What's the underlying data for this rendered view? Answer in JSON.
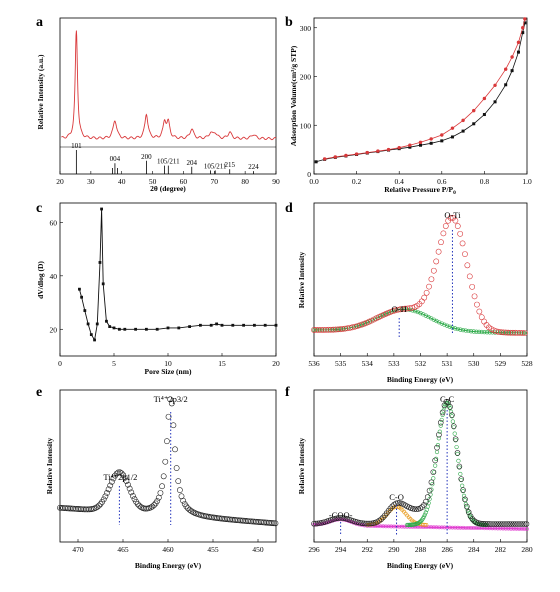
{
  "chart_data": [
    {
      "panel": "a",
      "type": "line",
      "xlabel": "2θ (degree)",
      "ylabel": "Relative Intensity (a.u.)",
      "xlim": [
        20,
        90
      ],
      "xticks": [
        20,
        30,
        40,
        50,
        60,
        70,
        80,
        90
      ],
      "color": "#d9383a",
      "peaks": [
        {
          "x": 25.3,
          "h": 1.0,
          "w": 0.45
        },
        {
          "x": 37.8,
          "h": 0.17,
          "w": 0.7
        },
        {
          "x": 48.0,
          "h": 0.23,
          "w": 0.6
        },
        {
          "x": 53.9,
          "h": 0.15,
          "w": 0.6
        },
        {
          "x": 55.1,
          "h": 0.14,
          "w": 0.6
        },
        {
          "x": 62.7,
          "h": 0.09,
          "w": 0.7
        },
        {
          "x": 68.8,
          "h": 0.05,
          "w": 0.7
        },
        {
          "x": 70.3,
          "h": 0.05,
          "w": 0.7
        },
        {
          "x": 75.0,
          "h": 0.06,
          "w": 0.7
        },
        {
          "x": 82.7,
          "h": 0.04,
          "w": 0.8
        }
      ],
      "reference_lines": [
        {
          "x": 25.3,
          "label": "101",
          "h": 1.0
        },
        {
          "x": 37.0,
          "label": "",
          "h": 0.25
        },
        {
          "x": 37.8,
          "label": "004",
          "h": 0.45
        },
        {
          "x": 38.6,
          "label": "",
          "h": 0.25
        },
        {
          "x": 48.0,
          "label": "200",
          "h": 0.55
        },
        {
          "x": 53.9,
          "label": "",
          "h": 0.35
        },
        {
          "x": 55.1,
          "label": "105/211",
          "h": 0.35
        },
        {
          "x": 62.7,
          "label": "204",
          "h": 0.3
        },
        {
          "x": 68.8,
          "label": "",
          "h": 0.15
        },
        {
          "x": 70.3,
          "label": "105/211",
          "h": 0.15
        },
        {
          "x": 75.0,
          "label": "215",
          "h": 0.2
        },
        {
          "x": 82.7,
          "label": "224",
          "h": 0.12
        }
      ]
    },
    {
      "panel": "b",
      "type": "line",
      "xlabel": "Relative Pressure P/P₀",
      "ylabel": "Adsorption Volume(cm³/g STP)",
      "xlim": [
        0,
        1.0
      ],
      "ylim": [
        0,
        320
      ],
      "xticks": [
        "0.0",
        "0.2",
        "0.4",
        "0.6",
        "0.8",
        "1.0"
      ],
      "yticks": [
        0,
        100,
        200,
        300
      ],
      "series": [
        {
          "color": "#111111",
          "x": [
            0.01,
            0.05,
            0.1,
            0.15,
            0.2,
            0.25,
            0.3,
            0.35,
            0.4,
            0.45,
            0.5,
            0.55,
            0.6,
            0.65,
            0.7,
            0.75,
            0.8,
            0.85,
            0.9,
            0.93,
            0.96,
            0.98,
            0.99
          ],
          "y": [
            25,
            30,
            34,
            37,
            40,
            43,
            46,
            49,
            52,
            55,
            59,
            63,
            68,
            76,
            88,
            103,
            122,
            148,
            183,
            212,
            250,
            290,
            310
          ]
        },
        {
          "color": "#d9383a",
          "x": [
            0.99,
            0.98,
            0.96,
            0.93,
            0.9,
            0.85,
            0.8,
            0.75,
            0.7,
            0.65,
            0.6,
            0.55,
            0.5,
            0.45,
            0.4,
            0.35,
            0.3,
            0.25,
            0.2,
            0.15,
            0.1,
            0.05
          ],
          "y": [
            318,
            300,
            270,
            240,
            215,
            182,
            155,
            130,
            110,
            94,
            80,
            72,
            65,
            59,
            54,
            50,
            47,
            44,
            41,
            38,
            35,
            31
          ]
        }
      ]
    },
    {
      "panel": "c",
      "type": "line",
      "xlabel": "Pore Size (nm)",
      "ylabel": "dV/dlog (D)",
      "xlim": [
        0,
        20
      ],
      "ylim": [
        10,
        65
      ],
      "xticks": [
        0,
        5,
        10,
        15,
        20
      ],
      "yticks": [
        20,
        40,
        60
      ],
      "color": "#111111",
      "x": [
        1.8,
        2.0,
        2.3,
        2.6,
        2.9,
        3.2,
        3.45,
        3.7,
        3.85,
        4.0,
        4.3,
        4.6,
        5.0,
        5.5,
        6,
        7,
        8,
        9,
        10,
        11,
        12,
        13,
        14,
        14.5,
        15,
        16,
        17,
        18,
        19,
        20
      ],
      "y": [
        35,
        32,
        27,
        22,
        18,
        16,
        22,
        45,
        65,
        37,
        23,
        21,
        20.5,
        20,
        20,
        20,
        20,
        20,
        20.5,
        20.5,
        21,
        21.5,
        21.5,
        22,
        21.5,
        21.5,
        21.5,
        21.5,
        21.5,
        21.5
      ]
    },
    {
      "panel": "d",
      "type": "scatter",
      "xlabel": "Binding Energy (eV)",
      "ylabel": "Relative Intensity",
      "xlim": [
        536,
        528
      ],
      "xticks": [
        536,
        535,
        534,
        533,
        532,
        531,
        530,
        529,
        528
      ],
      "annotations": [
        {
          "text": "O-Ti",
          "x": 530.8
        },
        {
          "text": "O-H",
          "x": 532.8
        }
      ],
      "peaks": [
        {
          "center": 530.8,
          "amp": 1.0,
          "w": 0.55,
          "color": "#d9383a"
        },
        {
          "center": 532.6,
          "amp": 0.2,
          "w": 1.0,
          "color": "#2eaa4a"
        }
      ]
    },
    {
      "panel": "e",
      "type": "scatter",
      "xlabel": "Binding Energy (eV)",
      "ylabel": "Relative Intensity",
      "xlim": [
        472,
        448
      ],
      "xticks": [
        470,
        465,
        460,
        455,
        450
      ],
      "annotations": [
        {
          "text": "Ti⁴⁺2p3/2",
          "x": 459.7
        },
        {
          "text": "Ti⁴⁺2p1/2",
          "x": 465.4
        }
      ],
      "peaks": [
        {
          "center": 459.7,
          "amp": 1.0,
          "w": 0.55
        },
        {
          "center": 465.4,
          "amp": 0.33,
          "w": 1.1
        }
      ]
    },
    {
      "panel": "f",
      "type": "scatter",
      "xlabel": "Binding Energy (eV)",
      "ylabel": "Relative Intensity",
      "xlim": [
        296,
        280
      ],
      "xticks": [
        296,
        294,
        292,
        290,
        288,
        286,
        284,
        282,
        280
      ],
      "annotations": [
        {
          "text": "C-C",
          "x": 286.0
        },
        {
          "text": "C-O",
          "x": 289.8
        },
        {
          "text": "-COO-",
          "x": 294.0
        }
      ],
      "peaks": [
        {
          "center": 286.0,
          "amp": 1.0,
          "w": 0.75,
          "color": "#2eaa4a"
        },
        {
          "center": 289.8,
          "amp": 0.15,
          "w": 0.7,
          "color": "#e89a1a"
        },
        {
          "center": 294.0,
          "amp": 0.05,
          "w": 0.8,
          "color": "#e040d0"
        }
      ]
    }
  ],
  "panels": {
    "a": {
      "label": "a",
      "xlabel": "2θ (degree)",
      "ylabel": "Relative Intensity (a.u.)"
    },
    "b": {
      "label": "b",
      "xlabel": "Relative Pressure P/P",
      "xlabel_sub": "0",
      "ylabel": "Adsorption Volume(cm³/g STP)"
    },
    "c": {
      "label": "c",
      "xlabel": "Pore Size (nm)",
      "ylabel": "dV/dlog (D)"
    },
    "d": {
      "label": "d",
      "xlabel": "Binding Energy (eV)",
      "ylabel": "Relative Intensity",
      "ann1": "O-Ti",
      "ann2": "O-H"
    },
    "e": {
      "label": "e",
      "xlabel": "Binding Energy (eV)",
      "ylabel": "Relative Intensity",
      "ann1": "Ti⁴⁺2p3/2",
      "ann2": "Ti⁴⁺2p1/2"
    },
    "f": {
      "label": "f",
      "xlabel": "Binding Energy (eV)",
      "ylabel": "Relative Intensity",
      "ann1": "C-C",
      "ann2": "C-O",
      "ann3": "-COO-"
    }
  }
}
